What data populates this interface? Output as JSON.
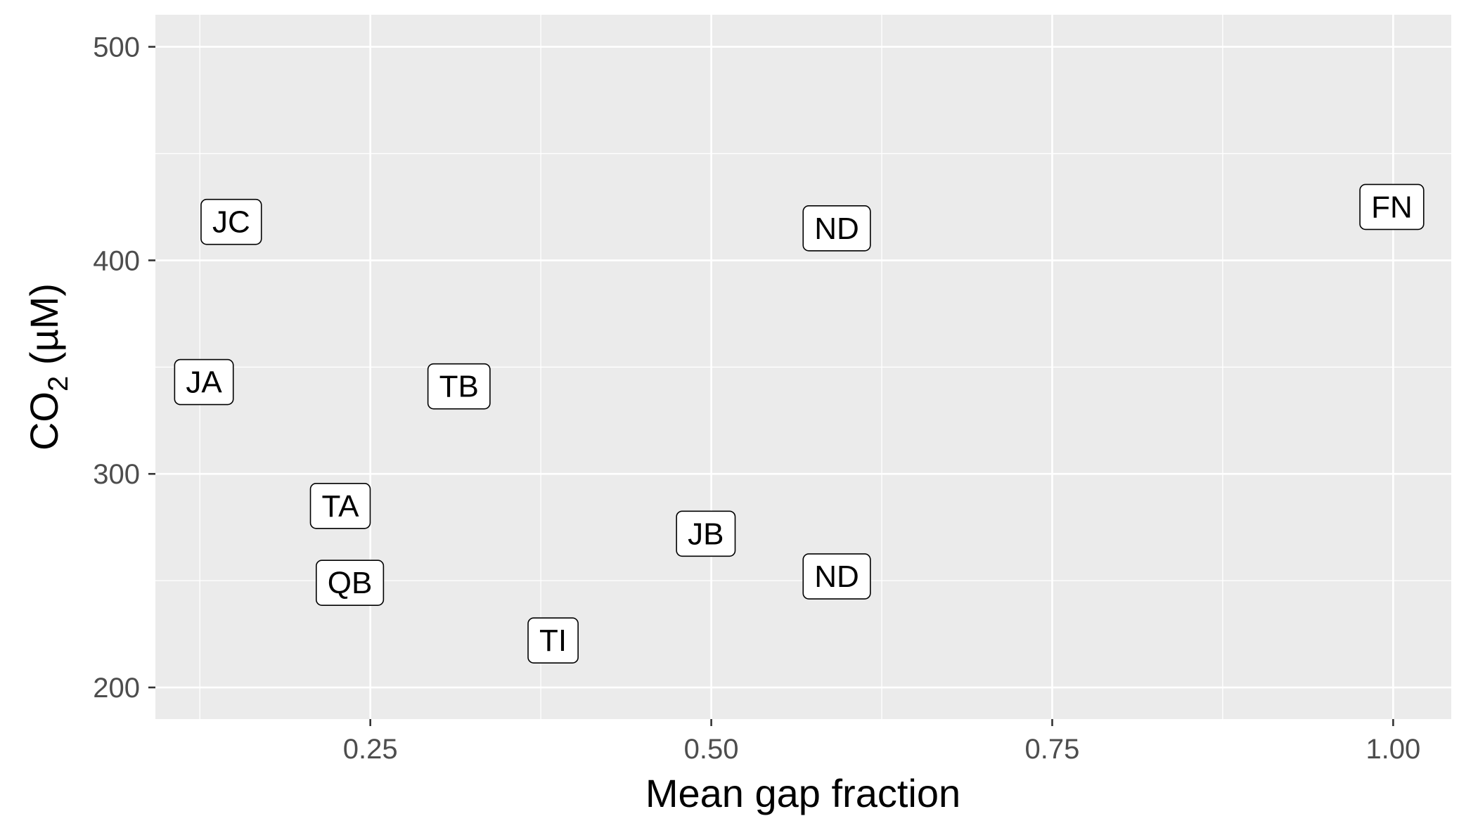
{
  "chart_data": {
    "type": "scatter",
    "xlabel": "Mean gap fraction",
    "ylabel": {
      "main": "CO",
      "sub": "2",
      "suffix": " (µM)"
    },
    "xlim": [
      0.0924,
      1.0426
    ],
    "ylim": [
      185.2,
      515.0
    ],
    "x_ticks": [
      0.25,
      0.5,
      0.75,
      1.0
    ],
    "x_tick_labels": [
      "0.25",
      "0.50",
      "0.75",
      "1.00"
    ],
    "x_minor_ticks": [
      0.125,
      0.375,
      0.625,
      0.875
    ],
    "y_ticks": [
      200,
      300,
      400,
      500
    ],
    "y_tick_labels": [
      "200",
      "300",
      "400",
      "500"
    ],
    "y_minor_ticks": [
      250,
      350,
      450
    ],
    "points": [
      {
        "label": "JC",
        "x": 0.148,
        "y": 418
      },
      {
        "label": "JA",
        "x": 0.128,
        "y": 343
      },
      {
        "label": "TB",
        "x": 0.315,
        "y": 341
      },
      {
        "label": "TA",
        "x": 0.228,
        "y": 285
      },
      {
        "label": "QB",
        "x": 0.235,
        "y": 249
      },
      {
        "label": "TI",
        "x": 0.384,
        "y": 222
      },
      {
        "label": "JB",
        "x": 0.496,
        "y": 272
      },
      {
        "label": "ND",
        "x": 0.592,
        "y": 415
      },
      {
        "label": "ND",
        "x": 0.592,
        "y": 252
      },
      {
        "label": "FN",
        "x": 0.999,
        "y": 425
      }
    ],
    "grid": true,
    "colors": {
      "panel": "#ebebeb",
      "grid": "#ffffff",
      "tick": "#333333"
    }
  }
}
